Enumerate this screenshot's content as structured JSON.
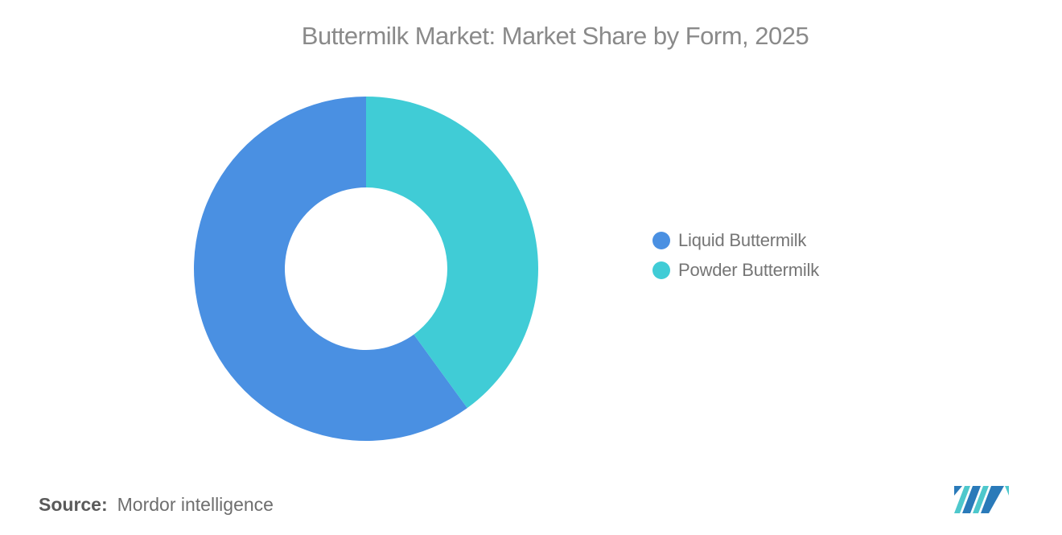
{
  "chart_data": {
    "type": "pie",
    "subtype": "donut",
    "title": "Buttermilk Market: Market Share by Form, 2025",
    "categories": [
      "Liquid Buttermilk",
      "Powder Buttermilk"
    ],
    "values": [
      60,
      40
    ],
    "unit": "% (estimated from segment angles; no data labels shown)",
    "colors": [
      "#4a90e2",
      "#40ccd6"
    ],
    "start_angle": "top",
    "direction": "counterclockwise",
    "inner_radius_ratio": 0.47,
    "legend_position": "right",
    "data_labels_shown": false
  },
  "legend": {
    "items": [
      {
        "label": "Liquid Buttermilk",
        "color": "#4a90e2"
      },
      {
        "label": "Powder Buttermilk",
        "color": "#40ccd6"
      }
    ]
  },
  "footer": {
    "source_label": "Source:",
    "source_value": "Mordor intelligence",
    "logo_name": "mordor-intelligence-logo",
    "logo_colors": {
      "dark": "#2a7ab9",
      "teal": "#4ec8cc"
    }
  },
  "styles": {
    "title_color": "#8a8a8a",
    "legend_text_color": "#757575",
    "background": "#ffffff"
  }
}
